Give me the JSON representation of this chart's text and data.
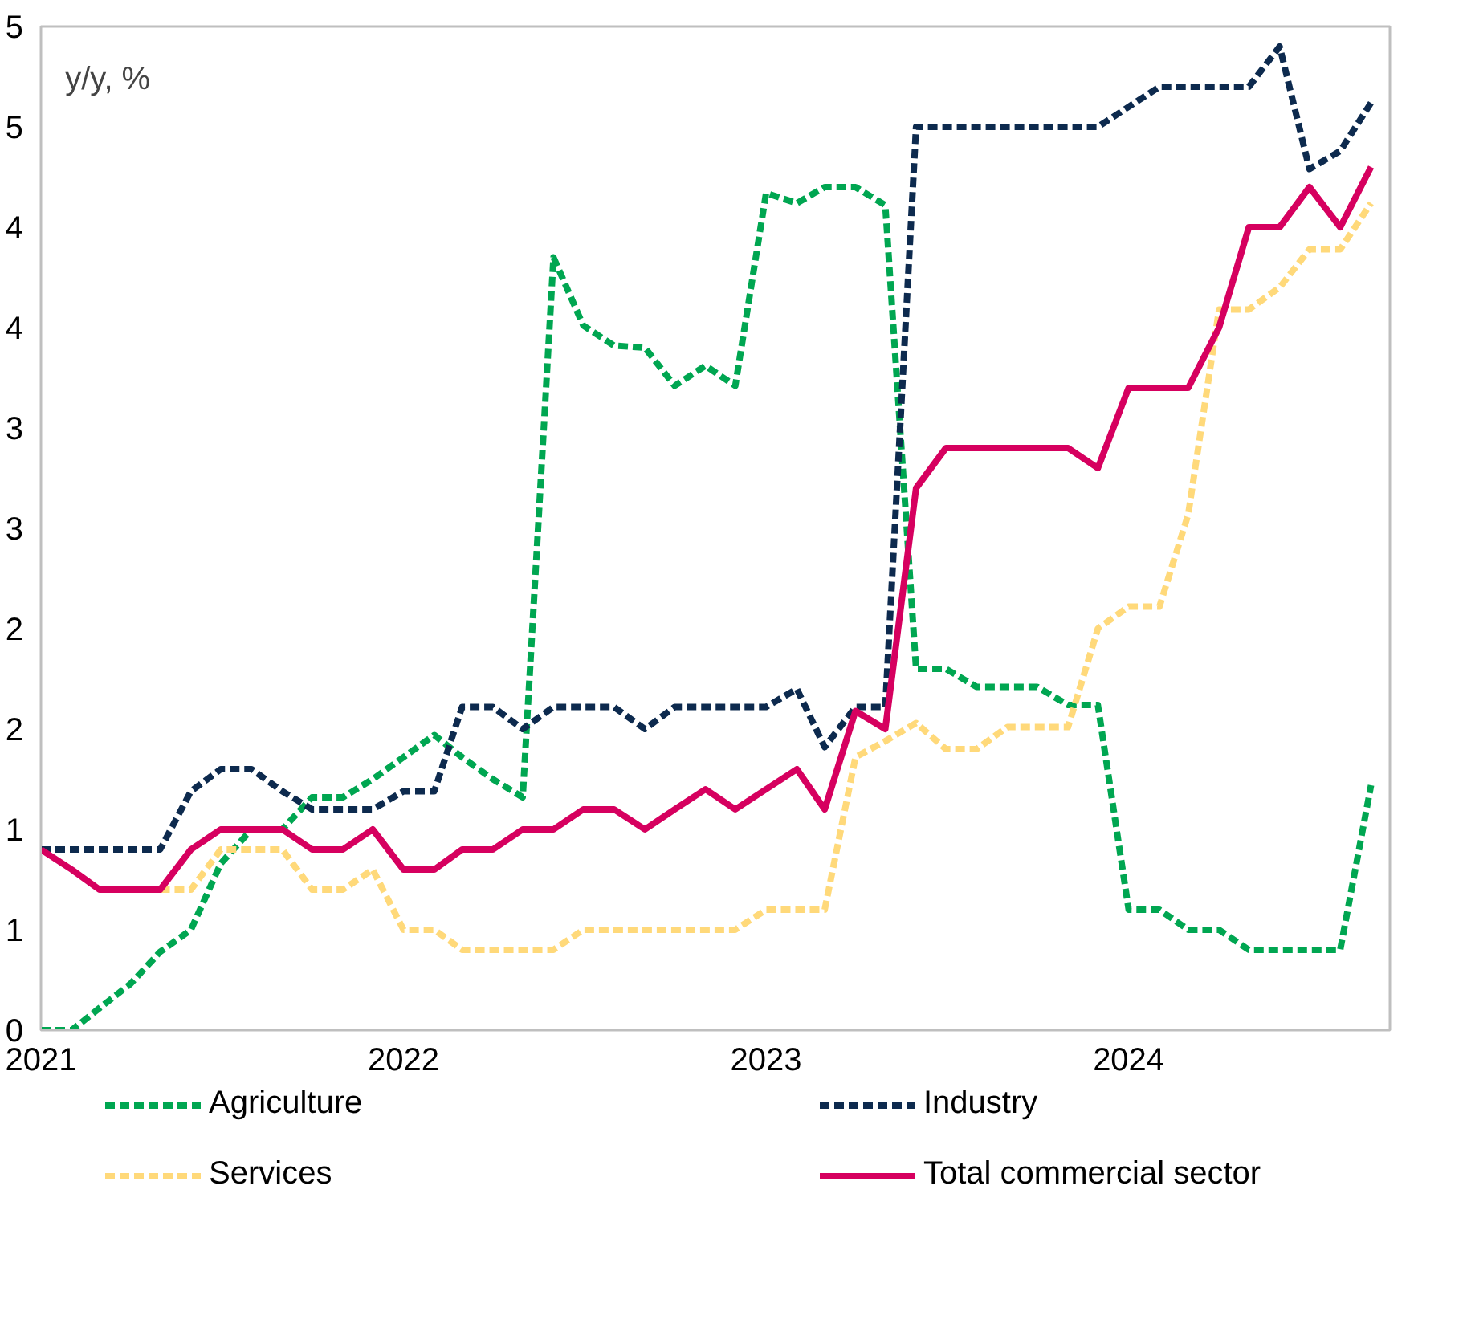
{
  "chart_data": {
    "type": "line",
    "x": [
      "2021-01",
      "2021-02",
      "2021-03",
      "2021-04",
      "2021-05",
      "2021-06",
      "2021-07",
      "2021-08",
      "2021-09",
      "2021-10",
      "2021-11",
      "2021-12",
      "2022-01",
      "2022-02",
      "2022-03",
      "2022-04",
      "2022-05",
      "2022-06",
      "2022-07",
      "2022-08",
      "2022-09",
      "2022-10",
      "2022-11",
      "2022-12",
      "2023-01",
      "2023-02",
      "2023-03",
      "2023-04",
      "2023-05",
      "2023-06",
      "2023-07",
      "2023-08",
      "2023-09",
      "2023-10",
      "2023-11",
      "2023-12",
      "2024-01",
      "2024-02",
      "2024-03",
      "2024-04",
      "2024-05",
      "2024-06",
      "2024-07",
      "2024-08",
      "2024-09"
    ],
    "series": [
      {
        "name": "Agriculture",
        "color": "#00a651",
        "line_style": "dashed",
        "values": [
          0,
          0,
          0.11,
          0.23,
          0.39,
          0.5,
          0.83,
          1.0,
          1.0,
          1.16,
          1.16,
          1.25,
          1.36,
          1.47,
          1.36,
          1.25,
          1.16,
          3.85,
          3.51,
          3.41,
          3.4,
          3.21,
          3.31,
          3.21,
          4.17,
          4.12,
          4.2,
          4.2,
          4.11,
          1.8,
          1.8,
          1.71,
          1.71,
          1.71,
          1.62,
          1.62,
          0.6,
          0.6,
          0.5,
          0.5,
          0.4,
          0.4,
          0.4,
          0.4,
          1.22
        ]
      },
      {
        "name": "Industry",
        "color": "#0d2a4e",
        "line_style": "dashed",
        "values": [
          0.9,
          0.9,
          0.9,
          0.9,
          0.9,
          1.19,
          1.3,
          1.3,
          1.19,
          1.1,
          1.1,
          1.1,
          1.19,
          1.19,
          1.61,
          1.61,
          1.5,
          1.61,
          1.61,
          1.61,
          1.5,
          1.61,
          1.61,
          1.61,
          1.61,
          1.7,
          1.41,
          1.61,
          1.61,
          4.5,
          4.5,
          4.5,
          4.5,
          4.5,
          4.5,
          4.5,
          4.6,
          4.7,
          4.7,
          4.7,
          4.7,
          4.9,
          4.29,
          4.38,
          4.62
        ]
      },
      {
        "name": "Services",
        "color": "#ffd97a",
        "line_style": "dashed",
        "x": [
          "2021-05",
          "2021-06",
          "2021-07",
          "2021-08",
          "2021-09",
          "2021-10",
          "2021-11",
          "2021-12",
          "2022-01",
          "2022-02",
          "2022-03",
          "2022-04",
          "2022-05",
          "2022-06",
          "2022-07",
          "2022-08",
          "2022-09",
          "2022-10",
          "2022-11",
          "2022-12",
          "2023-01",
          "2023-02",
          "2023-03",
          "2023-04",
          "2023-05",
          "2023-06",
          "2023-07",
          "2023-08",
          "2023-09",
          "2023-10",
          "2023-11",
          "2023-12",
          "2024-01",
          "2024-02",
          "2024-03",
          "2024-04",
          "2024-05",
          "2024-06",
          "2024-07",
          "2024-08",
          "2024-09"
        ],
        "values": [
          0.7,
          0.7,
          0.9,
          0.9,
          0.9,
          0.7,
          0.7,
          0.8,
          0.5,
          0.5,
          0.4,
          0.4,
          0.4,
          0.4,
          0.5,
          0.5,
          0.5,
          0.5,
          0.5,
          0.5,
          0.6,
          0.6,
          0.6,
          1.36,
          1.44,
          1.53,
          1.4,
          1.4,
          1.51,
          1.51,
          1.51,
          2.0,
          2.11,
          2.11,
          2.57,
          3.59,
          3.59,
          3.7,
          3.89,
          3.89,
          4.12
        ]
      },
      {
        "name": "Total commercial sector",
        "color": "#d6005f",
        "line_style": "solid",
        "values": [
          0.9,
          0.8,
          0.7,
          0.7,
          0.7,
          0.9,
          1.0,
          1.0,
          1.0,
          0.9,
          0.9,
          1.0,
          0.8,
          0.8,
          0.9,
          0.9,
          1.0,
          1.0,
          1.1,
          1.1,
          1.0,
          1.1,
          1.2,
          1.1,
          1.2,
          1.3,
          1.1,
          1.59,
          1.5,
          2.7,
          2.9,
          2.9,
          2.9,
          2.9,
          2.9,
          2.8,
          3.2,
          3.2,
          3.2,
          3.5,
          4.0,
          4.0,
          4.2,
          4.0,
          4.3
        ]
      }
    ],
    "xlim": [
      "2021-01",
      "2024-09-20"
    ],
    "xticks": [
      {
        "value": "2021-01",
        "label": "2021"
      },
      {
        "value": "2022-01",
        "label": "2022"
      },
      {
        "value": "2023-01",
        "label": "2023"
      },
      {
        "value": "2024-01",
        "label": "2024"
      }
    ],
    "ylim": [
      0,
      5
    ],
    "yticks": [
      0,
      {
        "value": 0.5,
        "label": "1"
      },
      1,
      {
        "value": 1.5,
        "label": "2"
      },
      2,
      {
        "value": 2.5,
        "label": "3"
      },
      3,
      {
        "value": 3.5,
        "label": "4"
      },
      4,
      {
        "value": 4.5,
        "label": "5"
      },
      5
    ],
    "annotations": [
      "y/y, %"
    ],
    "grid": false,
    "legend": "bottom",
    "marker": "none"
  }
}
